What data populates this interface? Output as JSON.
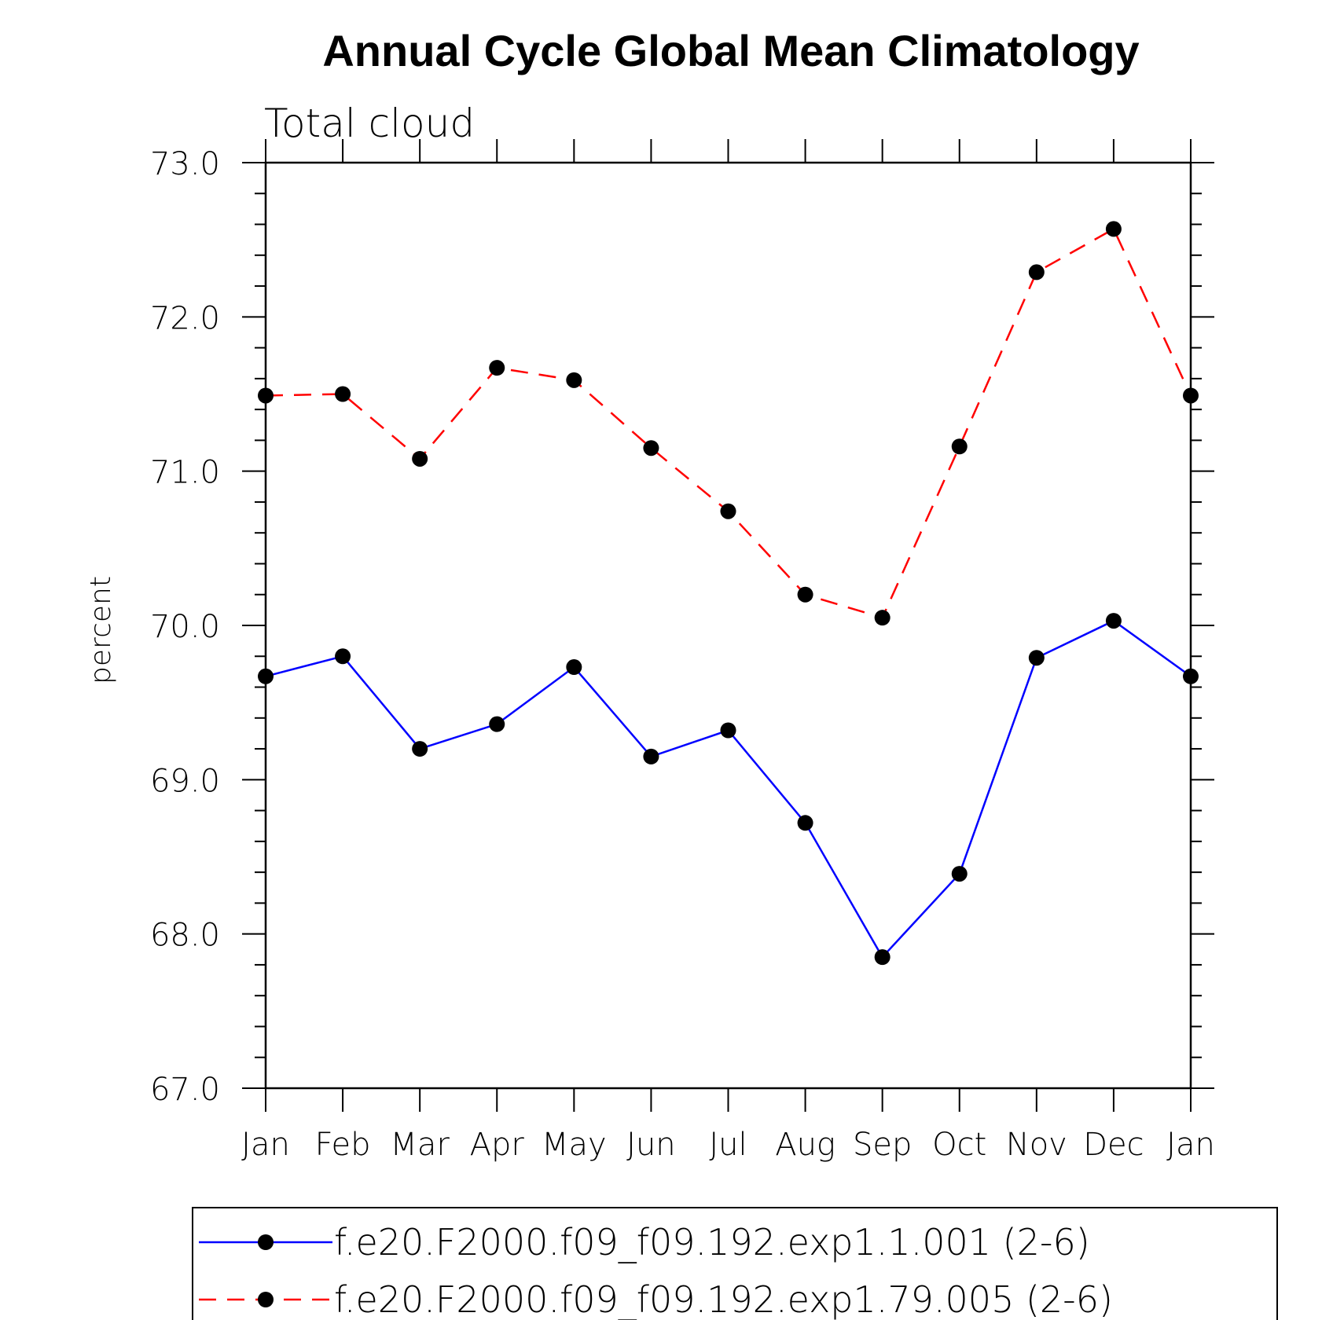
{
  "chart_data": {
    "type": "line",
    "title": "Annual Cycle Global Mean Climatology",
    "subtitle": "Total cloud",
    "xlabel": "",
    "ylabel": "percent",
    "categories": [
      "Jan",
      "Feb",
      "Mar",
      "Apr",
      "May",
      "Jun",
      "Jul",
      "Aug",
      "Sep",
      "Oct",
      "Nov",
      "Dec",
      "Jan"
    ],
    "ylim": [
      67.0,
      73.0
    ],
    "yticks": [
      "67.0",
      "68.0",
      "69.0",
      "70.0",
      "71.0",
      "72.0",
      "73.0"
    ],
    "grid": false,
    "legend_position": "bottom",
    "series": [
      {
        "name": "f.e20.F2000.f09_f09.192.exp1.1.001 (2-6)",
        "color": "#0000ff",
        "line_style": "solid",
        "marker": "filled-circle",
        "values": [
          69.67,
          69.8,
          69.2,
          69.36,
          69.73,
          69.15,
          69.32,
          68.72,
          67.85,
          68.39,
          69.79,
          70.03,
          69.67
        ]
      },
      {
        "name": "f.e20.F2000.f09_f09.192.exp1.79.005 (2-6)",
        "color": "#ff0000",
        "line_style": "dashed",
        "marker": "filled-circle",
        "values": [
          71.49,
          71.5,
          71.08,
          71.67,
          71.59,
          71.15,
          70.74,
          70.2,
          70.05,
          71.16,
          72.29,
          72.57,
          71.49
        ]
      }
    ]
  }
}
